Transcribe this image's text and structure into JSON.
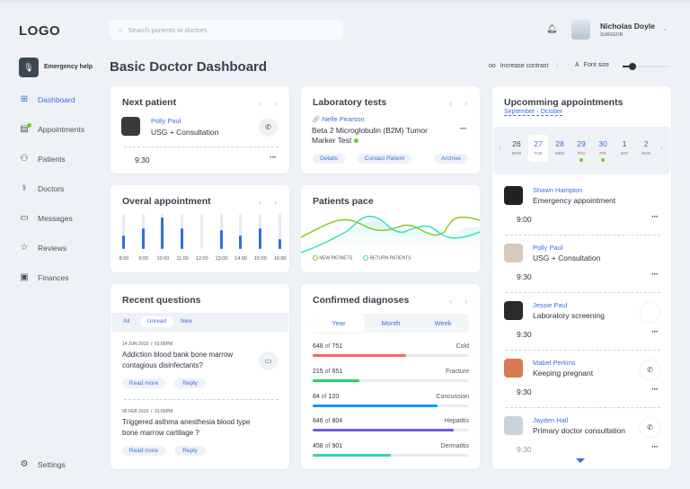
{
  "header": {
    "logo": "LOGO",
    "search_placeholder": "Search parients or doctors",
    "user_name": "Nicholas Doyle",
    "user_role": "SURGEON"
  },
  "emergency_label": "Emergency help",
  "page_title": "Basic Doctor Dashboard",
  "toolbar": {
    "contrast": "Increase contrast",
    "font_size": "Font size",
    "font_size_level": 0.2
  },
  "sidebar": {
    "items": [
      {
        "label": "Dashboard",
        "icon": "grid-icon",
        "active": true
      },
      {
        "label": "Appointments",
        "icon": "calendar-icon"
      },
      {
        "label": "Patients",
        "icon": "users-icon"
      },
      {
        "label": "Doctors",
        "icon": "stethoscope-icon"
      },
      {
        "label": "Messages",
        "icon": "chat-icon"
      },
      {
        "label": "Reviews",
        "icon": "star-icon"
      },
      {
        "label": "Finances",
        "icon": "wallet-icon"
      }
    ],
    "settings": "Settings"
  },
  "next_patient": {
    "title": "Next patient",
    "name": "Polly Paul",
    "desc": "USG + Consultation",
    "time": "9:30"
  },
  "lab": {
    "title": "Laboratory tests",
    "name": "Nelle Pearson",
    "test": "Beta 2 Microglobulin (B2M) Tumor Marker Test",
    "buttons": [
      "Details",
      "Contact Patient",
      "Archive"
    ]
  },
  "overall": {
    "title": "Overal appointment"
  },
  "chart_data": [
    {
      "type": "bar",
      "categories": [
        "8:00",
        "9:00",
        "10:00",
        "11:00",
        "12:00",
        "13:00",
        "14:00",
        "15:00",
        "16:00"
      ],
      "values": [
        0.38,
        0.6,
        0.9,
        0.6,
        0,
        0.55,
        0.38,
        0.6,
        0.28
      ],
      "ylim": [
        0,
        1
      ]
    },
    {
      "type": "line",
      "title": "Patients pace",
      "series": [
        {
          "name": "NEW PATINETS",
          "color": "#8ac926"
        },
        {
          "name": "RETURN PATIENTS",
          "color": "#2ee0c8"
        }
      ]
    }
  ],
  "questions": {
    "title": "Recent questions",
    "tabs": [
      "All",
      "Unread",
      "New"
    ],
    "items": [
      {
        "date": "14 JUN 2019",
        "time": "01:05PM",
        "text": "Addiction blood bank bone marrow contagious disinfectants?"
      },
      {
        "date": "05 FEB 2019",
        "time": "01:56PM",
        "text": "Triggered asthma anesthesia blood type bone marrow cartilage ?"
      }
    ],
    "read_more": "Read more",
    "reply": "Reply"
  },
  "diagnoses": {
    "title": "Confirmed diagnoses",
    "tabs": [
      "Year",
      "Month",
      "Week"
    ],
    "items": [
      {
        "count": "648",
        "total": "751",
        "label": "Cold",
        "fill": 0.6,
        "color": "#f76a5a"
      },
      {
        "count": "215",
        "total": "651",
        "label": "Fracture",
        "fill": 0.3,
        "color": "#1fd65f"
      },
      {
        "count": "84",
        "total": "120",
        "label": "Concussion",
        "fill": 0.8,
        "color": "#0a9bf5"
      },
      {
        "count": "846",
        "total": "804",
        "label": "Hepatitis",
        "fill": 0.9,
        "color": "#6b5ce0"
      },
      {
        "count": "458",
        "total": "901",
        "label": "Dermatitis",
        "fill": 0.5,
        "color": "#2fd4b4"
      }
    ],
    "of": "of"
  },
  "upcoming": {
    "title": "Upcomming appointments",
    "range": "September - October",
    "days": [
      {
        "d": "26",
        "w": "MON"
      },
      {
        "d": "27",
        "w": "TUE",
        "sel": true
      },
      {
        "d": "28",
        "w": "WED"
      },
      {
        "d": "29",
        "w": "THU",
        "dot": true
      },
      {
        "d": "30",
        "w": "FRI",
        "dot": true
      },
      {
        "d": "1",
        "w": "SAT"
      },
      {
        "d": "2",
        "w": "SUN"
      }
    ],
    "items": [
      {
        "name": "Shawn Hampton",
        "desc": "Emergency appointment",
        "time": "9:00"
      },
      {
        "name": "Polly Paul",
        "desc": "USG + Consultation",
        "time": "9:30"
      },
      {
        "name": "Jessie Paul",
        "desc": "Laboratory screening",
        "time": "9:30"
      },
      {
        "name": "Mabel Perkins",
        "desc": "Keeping pregnant",
        "time": "9:30"
      },
      {
        "name": "Jayden Hall",
        "desc": "Primary doctor consultation",
        "time": "9:30"
      }
    ]
  }
}
